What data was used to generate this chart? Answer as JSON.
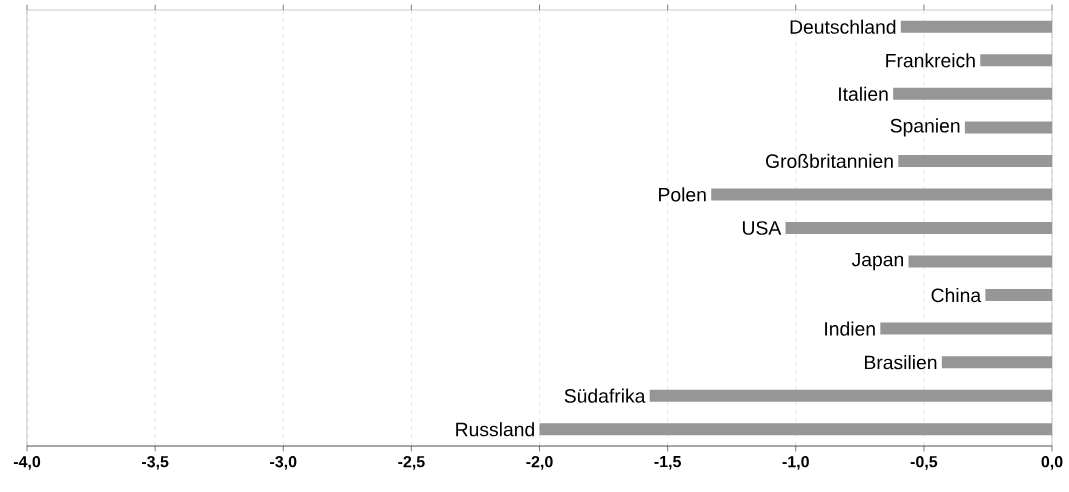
{
  "chart_data": {
    "type": "bar",
    "orientation": "horizontal",
    "categories": [
      "Deutschland",
      "Frankreich",
      "Italien",
      "Spanien",
      "Großbritannien",
      "Polen",
      "USA",
      "Japan",
      "China",
      "Indien",
      "Brasilien",
      "Südafrika",
      "Russland"
    ],
    "values": [
      -0.59,
      -0.28,
      -0.62,
      -0.34,
      -0.6,
      -1.33,
      -1.04,
      -0.56,
      -0.26,
      -0.67,
      -0.43,
      -1.57,
      -2.0
    ],
    "color": "#969696",
    "xlim": [
      -4,
      0
    ],
    "xticks": [
      {
        "value": -4,
        "label": "-4,0"
      },
      {
        "value": -3.5,
        "label": "-3,5"
      },
      {
        "value": -3,
        "label": "-3,0"
      },
      {
        "value": -2.5,
        "label": "-2,5"
      },
      {
        "value": -2,
        "label": "-2,0"
      },
      {
        "value": -1.5,
        "label": "-1,5"
      },
      {
        "value": -1,
        "label": "-1,0"
      },
      {
        "value": -0.5,
        "label": "-0,5"
      },
      {
        "value": 0,
        "label": "0,0"
      }
    ],
    "grid": "x"
  }
}
